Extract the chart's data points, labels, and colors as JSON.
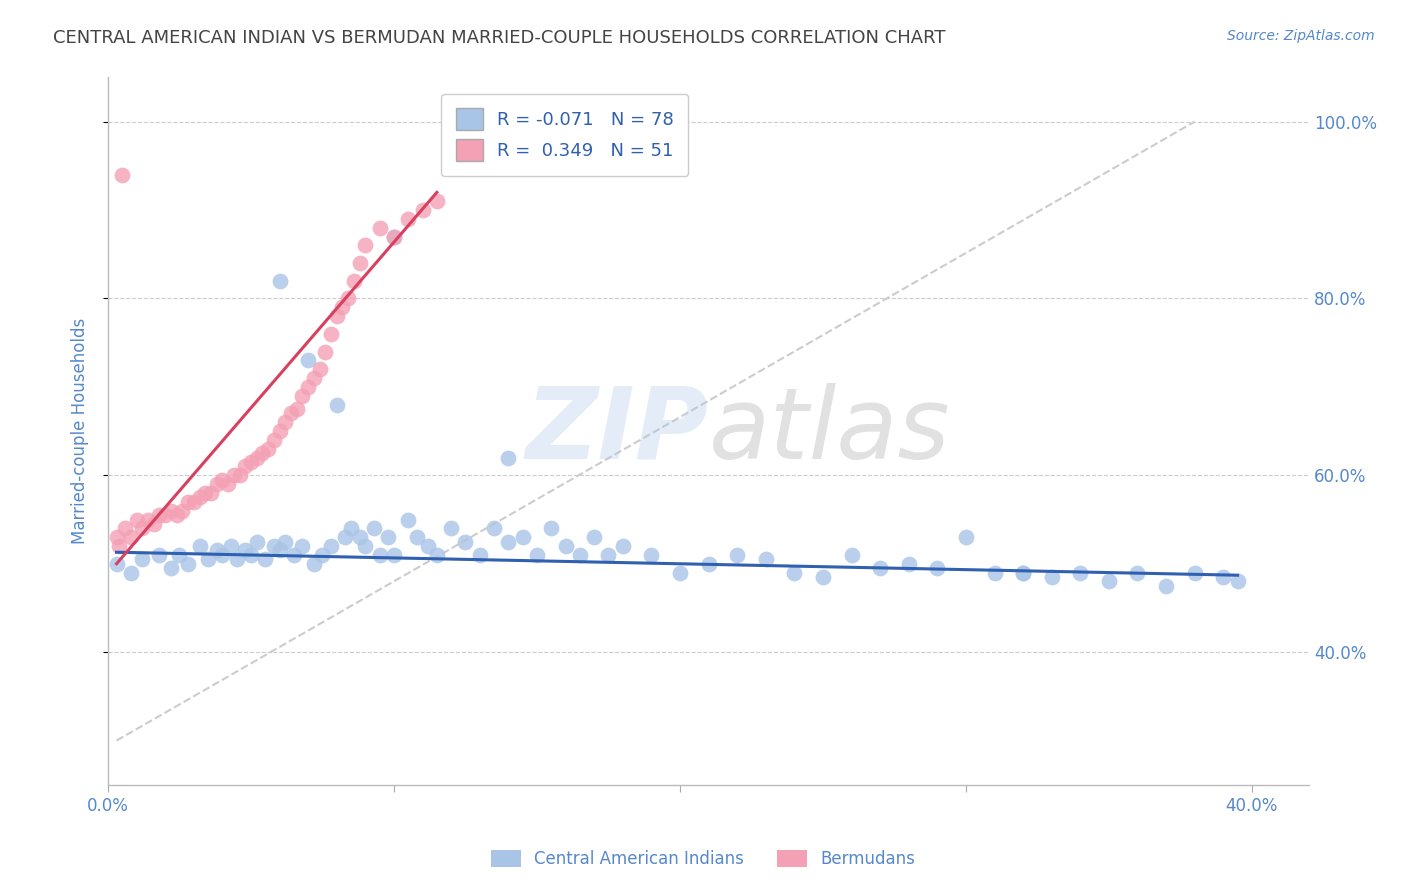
{
  "title": "CENTRAL AMERICAN INDIAN VS BERMUDAN MARRIED-COUPLE HOUSEHOLDS CORRELATION CHART",
  "source": "Source: ZipAtlas.com",
  "ylabel": "Married-couple Households",
  "xlim": [
    0.0,
    0.42
  ],
  "ylim": [
    0.25,
    1.05
  ],
  "watermark_part1": "ZIP",
  "watermark_part2": "atlas",
  "blue_R": -0.071,
  "blue_N": 78,
  "pink_R": 0.349,
  "pink_N": 51,
  "blue_color": "#a8c4e6",
  "pink_color": "#f4a0b5",
  "blue_line_color": "#3060b0",
  "pink_line_color": "#d84060",
  "dashed_line_color": "#cccccc",
  "blue_scatter_x": [
    0.003,
    0.008,
    0.012,
    0.018,
    0.022,
    0.025,
    0.028,
    0.032,
    0.035,
    0.038,
    0.04,
    0.043,
    0.045,
    0.048,
    0.05,
    0.052,
    0.055,
    0.058,
    0.06,
    0.062,
    0.065,
    0.068,
    0.07,
    0.072,
    0.075,
    0.078,
    0.08,
    0.083,
    0.085,
    0.088,
    0.09,
    0.093,
    0.095,
    0.098,
    0.1,
    0.105,
    0.108,
    0.112,
    0.115,
    0.12,
    0.125,
    0.13,
    0.135,
    0.14,
    0.145,
    0.15,
    0.155,
    0.16,
    0.165,
    0.17,
    0.175,
    0.18,
    0.19,
    0.2,
    0.21,
    0.22,
    0.23,
    0.24,
    0.25,
    0.26,
    0.27,
    0.28,
    0.29,
    0.3,
    0.31,
    0.32,
    0.33,
    0.34,
    0.35,
    0.36,
    0.37,
    0.38,
    0.39,
    0.395,
    0.1,
    0.06,
    0.14,
    0.32
  ],
  "blue_scatter_y": [
    0.5,
    0.49,
    0.505,
    0.51,
    0.495,
    0.51,
    0.5,
    0.52,
    0.505,
    0.515,
    0.51,
    0.52,
    0.505,
    0.515,
    0.51,
    0.525,
    0.505,
    0.52,
    0.515,
    0.525,
    0.51,
    0.52,
    0.73,
    0.5,
    0.51,
    0.52,
    0.68,
    0.53,
    0.54,
    0.53,
    0.52,
    0.54,
    0.51,
    0.53,
    0.51,
    0.55,
    0.53,
    0.52,
    0.51,
    0.54,
    0.525,
    0.51,
    0.54,
    0.525,
    0.53,
    0.51,
    0.54,
    0.52,
    0.51,
    0.53,
    0.51,
    0.52,
    0.51,
    0.49,
    0.5,
    0.51,
    0.505,
    0.49,
    0.485,
    0.51,
    0.495,
    0.5,
    0.495,
    0.53,
    0.49,
    0.49,
    0.485,
    0.49,
    0.48,
    0.49,
    0.475,
    0.49,
    0.485,
    0.48,
    0.87,
    0.82,
    0.62,
    0.49
  ],
  "pink_scatter_x": [
    0.003,
    0.004,
    0.006,
    0.008,
    0.01,
    0.012,
    0.014,
    0.016,
    0.018,
    0.02,
    0.022,
    0.024,
    0.026,
    0.028,
    0.03,
    0.032,
    0.034,
    0.036,
    0.038,
    0.04,
    0.042,
    0.044,
    0.046,
    0.048,
    0.05,
    0.052,
    0.054,
    0.056,
    0.058,
    0.06,
    0.062,
    0.064,
    0.066,
    0.068,
    0.07,
    0.072,
    0.074,
    0.076,
    0.078,
    0.08,
    0.082,
    0.084,
    0.086,
    0.088,
    0.09,
    0.095,
    0.1,
    0.105,
    0.11,
    0.115,
    0.005
  ],
  "pink_scatter_y": [
    0.53,
    0.52,
    0.54,
    0.53,
    0.55,
    0.54,
    0.55,
    0.545,
    0.555,
    0.555,
    0.56,
    0.555,
    0.56,
    0.57,
    0.57,
    0.575,
    0.58,
    0.58,
    0.59,
    0.595,
    0.59,
    0.6,
    0.6,
    0.61,
    0.615,
    0.62,
    0.625,
    0.63,
    0.64,
    0.65,
    0.66,
    0.67,
    0.675,
    0.69,
    0.7,
    0.71,
    0.72,
    0.74,
    0.76,
    0.78,
    0.79,
    0.8,
    0.82,
    0.84,
    0.86,
    0.88,
    0.87,
    0.89,
    0.9,
    0.91,
    0.94
  ],
  "legend_label_blue": "Central American Indians",
  "legend_label_pink": "Bermudans",
  "background_color": "#ffffff",
  "grid_color": "#cccccc",
  "title_color": "#444444",
  "tick_label_color": "#5588cc"
}
